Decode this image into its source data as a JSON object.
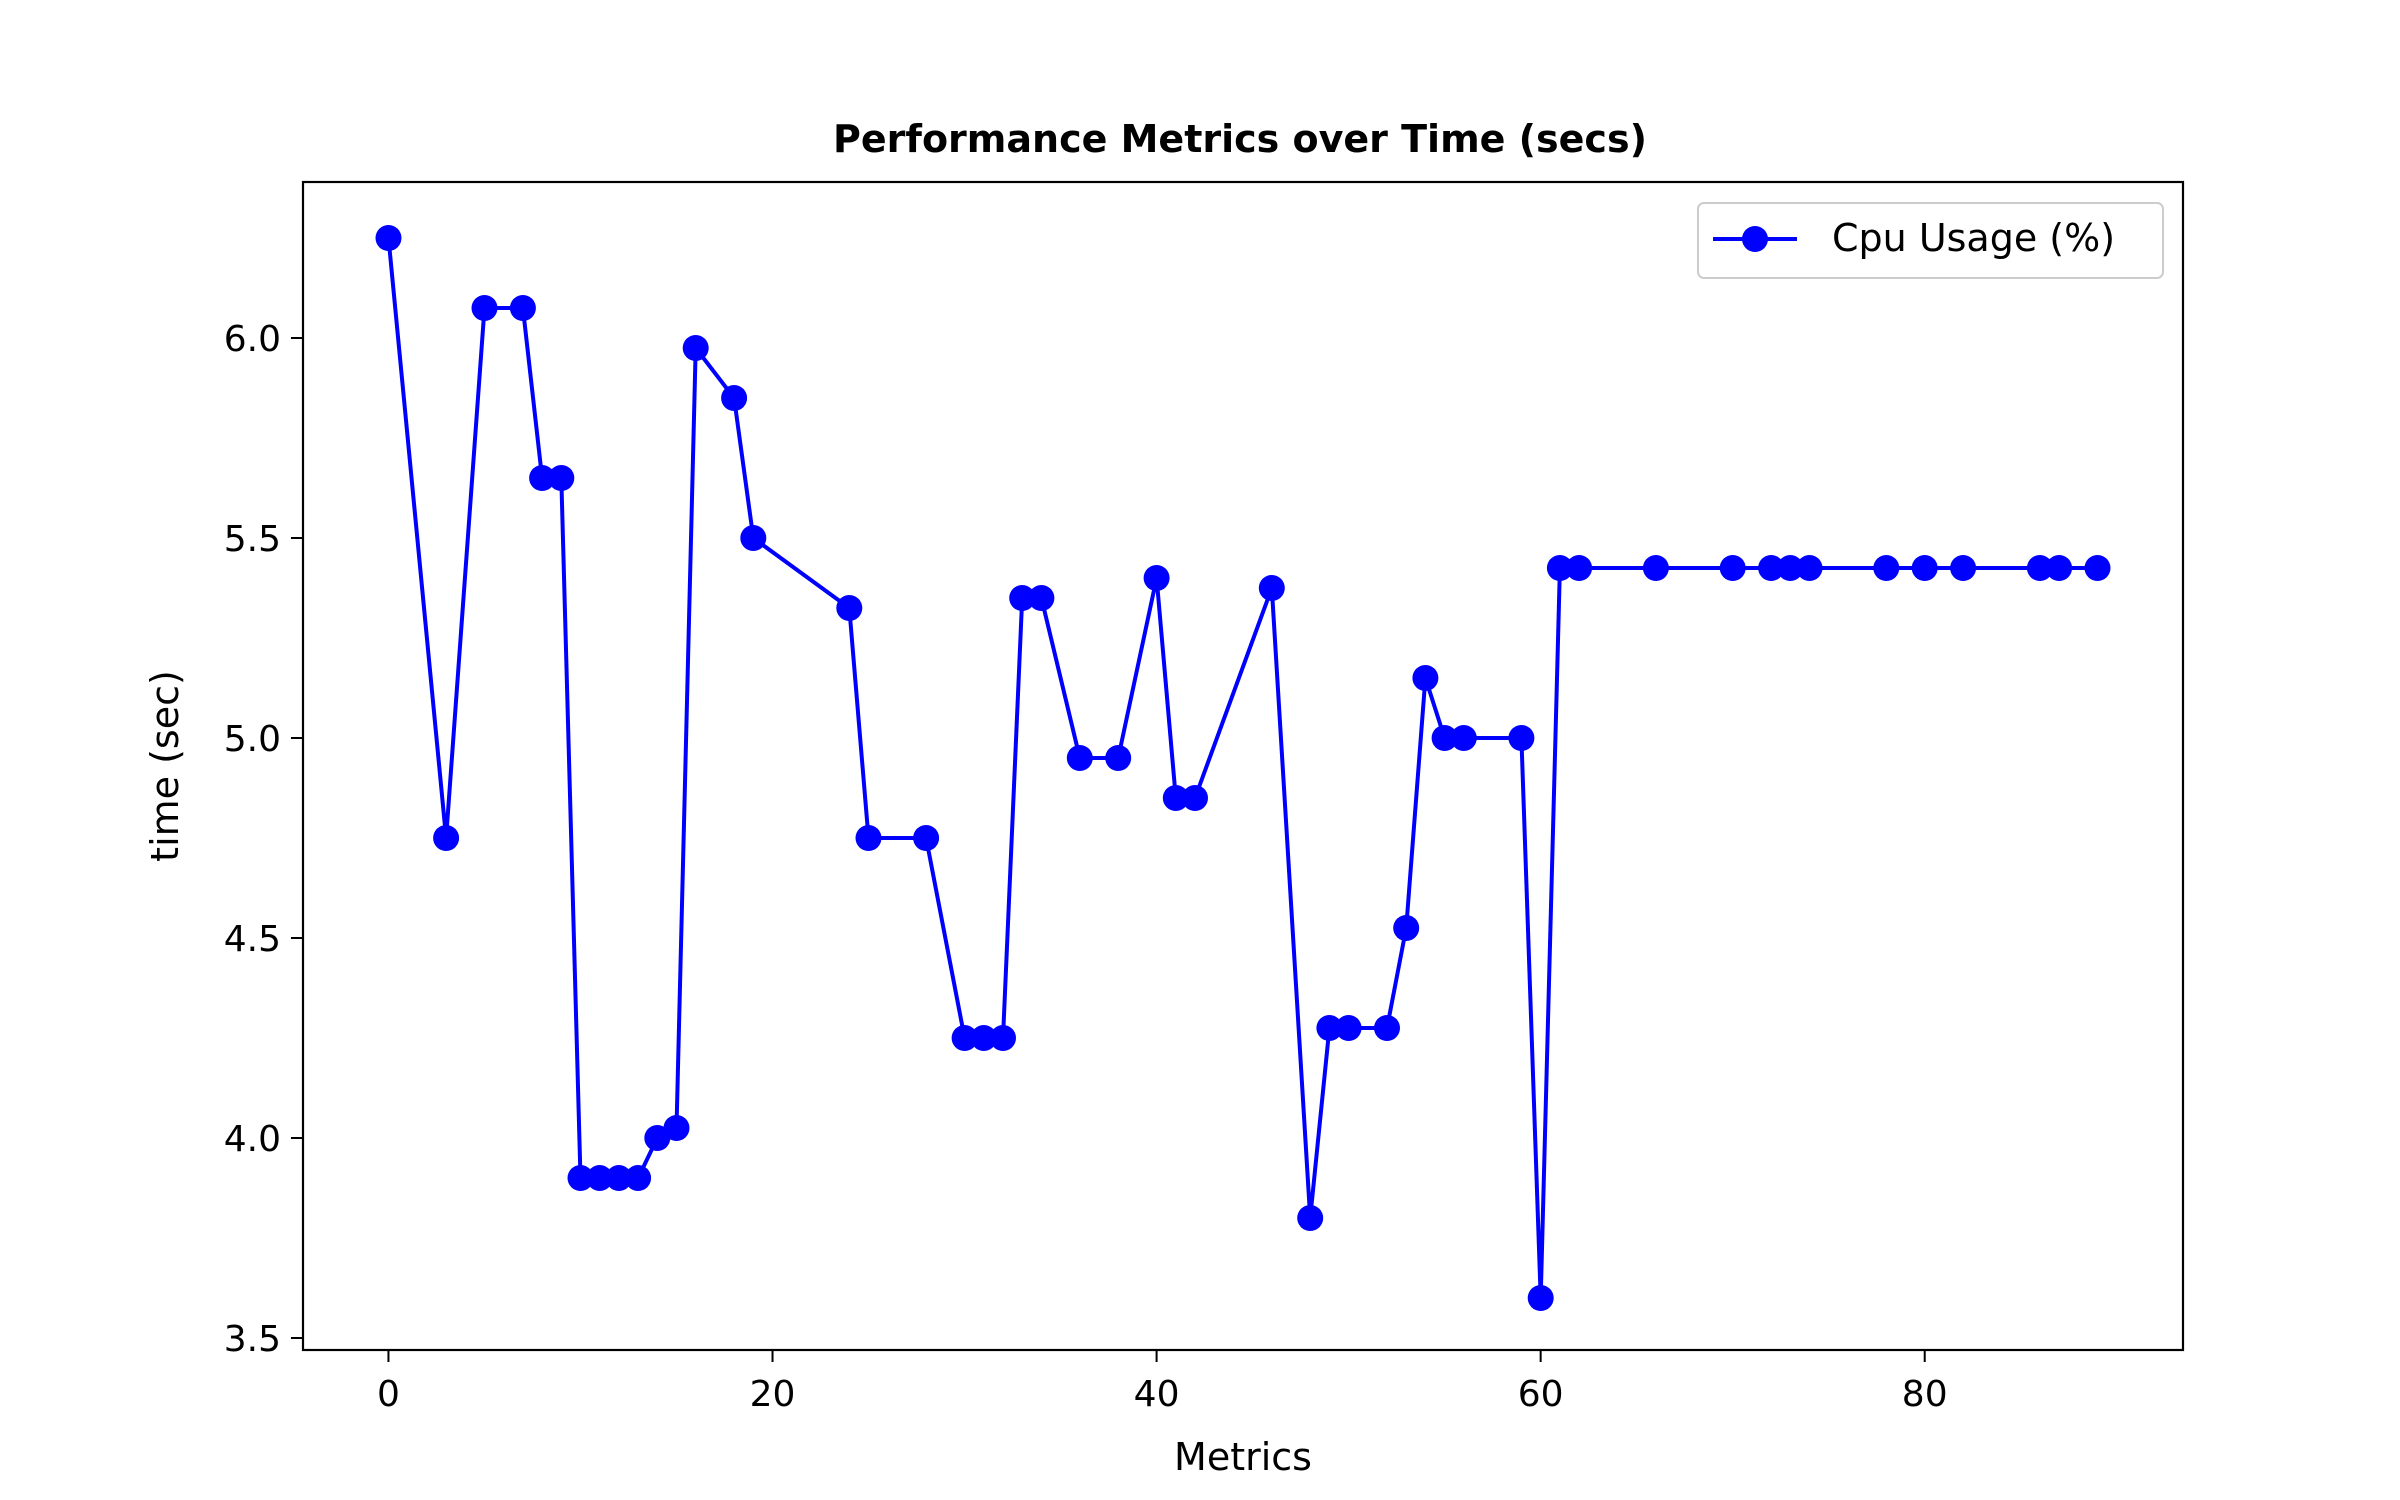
{
  "chart_data": {
    "type": "line",
    "title": "Performance Metrics over Time (secs)",
    "xlabel": "Metrics",
    "ylabel": "time (sec)",
    "xlim": [
      -4.45,
      93.45
    ],
    "ylim": [
      3.47,
      6.39
    ],
    "xticks": [
      0,
      20,
      40,
      60,
      80
    ],
    "yticks": [
      3.5,
      4.0,
      4.5,
      5.0,
      5.5,
      6.0
    ],
    "xtick_labels": [
      "0",
      "20",
      "40",
      "60",
      "80"
    ],
    "ytick_labels": [
      "3.5",
      "4.0",
      "4.5",
      "5.0",
      "5.5",
      "6.0"
    ],
    "grid": false,
    "legend_position": "top-right",
    "series": [
      {
        "name": "Cpu Usage (%)",
        "color": "#0000ff",
        "marker": "circle",
        "x": [
          0,
          3,
          5,
          7,
          8,
          9,
          10,
          11,
          12,
          13,
          14,
          15,
          16,
          18,
          19,
          24,
          25,
          28,
          30,
          31,
          32,
          33,
          34,
          36,
          38,
          40,
          41,
          42,
          46,
          48,
          49,
          50,
          52,
          53,
          54,
          55,
          56,
          59,
          60,
          61,
          62,
          66,
          70,
          72,
          73,
          74,
          78,
          80,
          82,
          86,
          87,
          89
        ],
        "y": [
          6.25,
          4.75,
          6.075,
          6.075,
          5.65,
          5.65,
          3.9,
          3.9,
          3.9,
          3.9,
          4.0,
          4.025,
          5.975,
          5.85,
          5.5,
          5.325,
          4.75,
          4.75,
          4.25,
          4.25,
          4.25,
          5.35,
          5.35,
          4.95,
          4.95,
          5.4,
          4.85,
          4.85,
          5.375,
          3.8,
          4.275,
          4.275,
          4.275,
          4.525,
          5.15,
          5.0,
          5.0,
          5.0,
          3.6,
          5.425,
          5.425,
          5.425,
          5.425,
          5.425,
          5.425,
          5.425,
          5.425,
          5.425,
          5.425,
          5.425,
          5.425,
          5.425
        ]
      }
    ]
  }
}
